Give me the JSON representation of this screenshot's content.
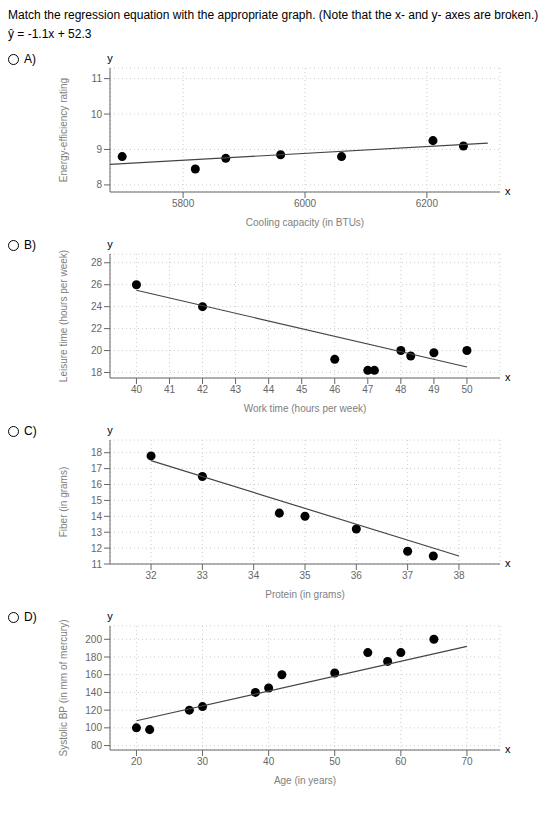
{
  "title": "Match the regression equation with the appropriate graph. (Note that the x- and y- axes are broken.)",
  "subtitle": "ŷ = -1.1x + 52.3",
  "chart_data": [
    {
      "type": "scatter",
      "title": "A)",
      "xlabel": "Cooling capacity (in BTUs)",
      "ylabel": "Energy-efficiency rating",
      "xlim": [
        5680,
        6320
      ],
      "ylim": [
        7.8,
        11.3
      ],
      "xticks": [
        5800,
        6000,
        6200
      ],
      "yticks": [
        8,
        9,
        10,
        11
      ],
      "grid": true,
      "annotations": [
        "y",
        "x"
      ],
      "series": [
        {
          "type": "scatter",
          "color": "#000000",
          "x": [
            5700,
            5820,
            5870,
            5960,
            6060,
            6210,
            6260
          ],
          "values": [
            8.8,
            8.45,
            8.75,
            8.85,
            8.8,
            9.25,
            9.1
          ]
        },
        {
          "type": "line",
          "color": "#444444",
          "x": [
            5680,
            6300
          ],
          "values": [
            8.58,
            9.18
          ]
        }
      ]
    },
    {
      "type": "scatter",
      "title": "B)",
      "xlabel": "Work time (hours per week)",
      "ylabel": "Leisure time (hours per week)",
      "xlim": [
        39.2,
        51.0
      ],
      "ylim": [
        17.5,
        28.8
      ],
      "xticks": [
        40,
        41,
        42,
        43,
        44,
        45,
        46,
        47,
        48,
        49,
        50
      ],
      "yticks": [
        18,
        20,
        22,
        24,
        26,
        28
      ],
      "grid": true,
      "annotations": [
        "y",
        "x"
      ],
      "series": [
        {
          "type": "scatter",
          "color": "#000000",
          "x": [
            40,
            42,
            46,
            47,
            47.2,
            48,
            48.3,
            49,
            50
          ],
          "values": [
            26,
            24,
            19.2,
            18.2,
            18.2,
            20.0,
            19.5,
            19.8,
            20.0
          ]
        },
        {
          "type": "line",
          "color": "#444444",
          "x": [
            40,
            50
          ],
          "values": [
            25.5,
            18.5
          ]
        }
      ]
    },
    {
      "type": "scatter",
      "title": "C)",
      "xlabel": "Protein (in grams)",
      "ylabel": "Fiber (in grams)",
      "xlim": [
        31.2,
        38.8
      ],
      "ylim": [
        11.0,
        18.8
      ],
      "xticks": [
        32,
        33,
        34,
        35,
        36,
        37,
        38
      ],
      "yticks": [
        11,
        12,
        13,
        14,
        15,
        16,
        17,
        18
      ],
      "grid": true,
      "annotations": [
        "y",
        "x"
      ],
      "series": [
        {
          "type": "scatter",
          "color": "#000000",
          "x": [
            32,
            33,
            34.5,
            35,
            36,
            37,
            37.5
          ],
          "values": [
            17.8,
            16.5,
            14.2,
            14.0,
            13.2,
            11.8,
            11.5
          ]
        },
        {
          "type": "line",
          "color": "#444444",
          "x": [
            32,
            38
          ],
          "values": [
            17.5,
            11.5
          ]
        }
      ]
    },
    {
      "type": "scatter",
      "title": "D)",
      "xlabel": "Age (in years)",
      "ylabel": "Systolic BP (in mm of mercury)",
      "xlim": [
        16,
        75
      ],
      "ylim": [
        75,
        215
      ],
      "xticks": [
        20,
        30,
        40,
        50,
        60,
        70
      ],
      "yticks": [
        80,
        100,
        120,
        140,
        160,
        180,
        200
      ],
      "grid": true,
      "annotations": [
        "y",
        "x"
      ],
      "series": [
        {
          "type": "scatter",
          "color": "#000000",
          "x": [
            20,
            22,
            28,
            30,
            38,
            40,
            42,
            50,
            55,
            58,
            60,
            65
          ],
          "values": [
            100,
            98,
            120,
            124,
            140,
            145,
            160,
            162,
            185,
            175,
            185,
            200
          ]
        },
        {
          "type": "line",
          "color": "#444444",
          "x": [
            20,
            70
          ],
          "values": [
            108,
            192
          ]
        }
      ]
    }
  ]
}
